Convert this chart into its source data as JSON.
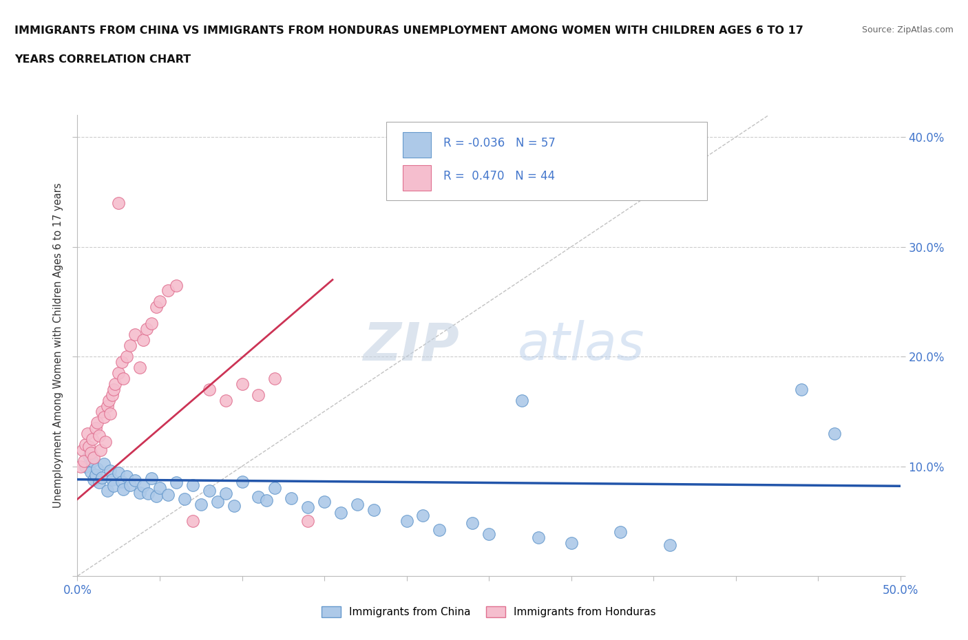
{
  "title_line1": "IMMIGRANTS FROM CHINA VS IMMIGRANTS FROM HONDURAS UNEMPLOYMENT AMONG WOMEN WITH CHILDREN AGES 6 TO 17",
  "title_line2": "YEARS CORRELATION CHART",
  "source": "Source: ZipAtlas.com",
  "ylabel": "Unemployment Among Women with Children Ages 6 to 17 years",
  "xlim": [
    0.0,
    0.5
  ],
  "ylim": [
    0.0,
    0.42
  ],
  "grid_color": "#cccccc",
  "background_color": "#ffffff",
  "watermark_zip": "ZIP",
  "watermark_atlas": "atlas",
  "china_color": "#adc9e8",
  "china_edge_color": "#6699cc",
  "honduras_color": "#f5bece",
  "honduras_edge_color": "#e07090",
  "china_R": -0.036,
  "china_N": 57,
  "honduras_R": 0.47,
  "honduras_N": 44,
  "china_line_color": "#2255aa",
  "honduras_line_color": "#cc3355",
  "diagonal_color": "#bbbbbb",
  "tick_color": "#4477cc",
  "title_color": "#111111",
  "source_color": "#666666",
  "ylabel_color": "#333333",
  "china_x": [
    0.005,
    0.007,
    0.008,
    0.009,
    0.01,
    0.011,
    0.012,
    0.013,
    0.015,
    0.016,
    0.018,
    0.02,
    0.021,
    0.022,
    0.025,
    0.027,
    0.028,
    0.03,
    0.032,
    0.035,
    0.038,
    0.04,
    0.043,
    0.045,
    0.048,
    0.05,
    0.055,
    0.06,
    0.065,
    0.07,
    0.075,
    0.08,
    0.085,
    0.09,
    0.095,
    0.1,
    0.11,
    0.115,
    0.12,
    0.13,
    0.14,
    0.15,
    0.16,
    0.17,
    0.18,
    0.2,
    0.21,
    0.22,
    0.24,
    0.25,
    0.28,
    0.3,
    0.33,
    0.36,
    0.44,
    0.46,
    0.27
  ],
  "china_y": [
    0.1,
    0.11,
    0.095,
    0.105,
    0.088,
    0.092,
    0.098,
    0.085,
    0.09,
    0.102,
    0.078,
    0.096,
    0.088,
    0.082,
    0.094,
    0.086,
    0.079,
    0.091,
    0.083,
    0.087,
    0.076,
    0.082,
    0.075,
    0.089,
    0.073,
    0.08,
    0.074,
    0.085,
    0.07,
    0.083,
    0.065,
    0.078,
    0.068,
    0.075,
    0.064,
    0.086,
    0.072,
    0.069,
    0.08,
    0.071,
    0.063,
    0.068,
    0.058,
    0.065,
    0.06,
    0.05,
    0.055,
    0.042,
    0.048,
    0.038,
    0.035,
    0.03,
    0.04,
    0.028,
    0.17,
    0.13,
    0.16
  ],
  "honduras_x": [
    0.002,
    0.003,
    0.004,
    0.005,
    0.006,
    0.007,
    0.008,
    0.009,
    0.01,
    0.011,
    0.012,
    0.013,
    0.014,
    0.015,
    0.016,
    0.017,
    0.018,
    0.019,
    0.02,
    0.021,
    0.022,
    0.023,
    0.025,
    0.027,
    0.028,
    0.03,
    0.032,
    0.035,
    0.038,
    0.04,
    0.042,
    0.045,
    0.048,
    0.05,
    0.055,
    0.06,
    0.07,
    0.08,
    0.09,
    0.1,
    0.11,
    0.12,
    0.14,
    0.025
  ],
  "honduras_y": [
    0.1,
    0.115,
    0.105,
    0.12,
    0.13,
    0.118,
    0.112,
    0.125,
    0.108,
    0.135,
    0.14,
    0.128,
    0.115,
    0.15,
    0.145,
    0.122,
    0.155,
    0.16,
    0.148,
    0.165,
    0.17,
    0.175,
    0.185,
    0.195,
    0.18,
    0.2,
    0.21,
    0.22,
    0.19,
    0.215,
    0.225,
    0.23,
    0.245,
    0.25,
    0.26,
    0.265,
    0.05,
    0.17,
    0.16,
    0.175,
    0.165,
    0.18,
    0.05,
    0.34
  ]
}
